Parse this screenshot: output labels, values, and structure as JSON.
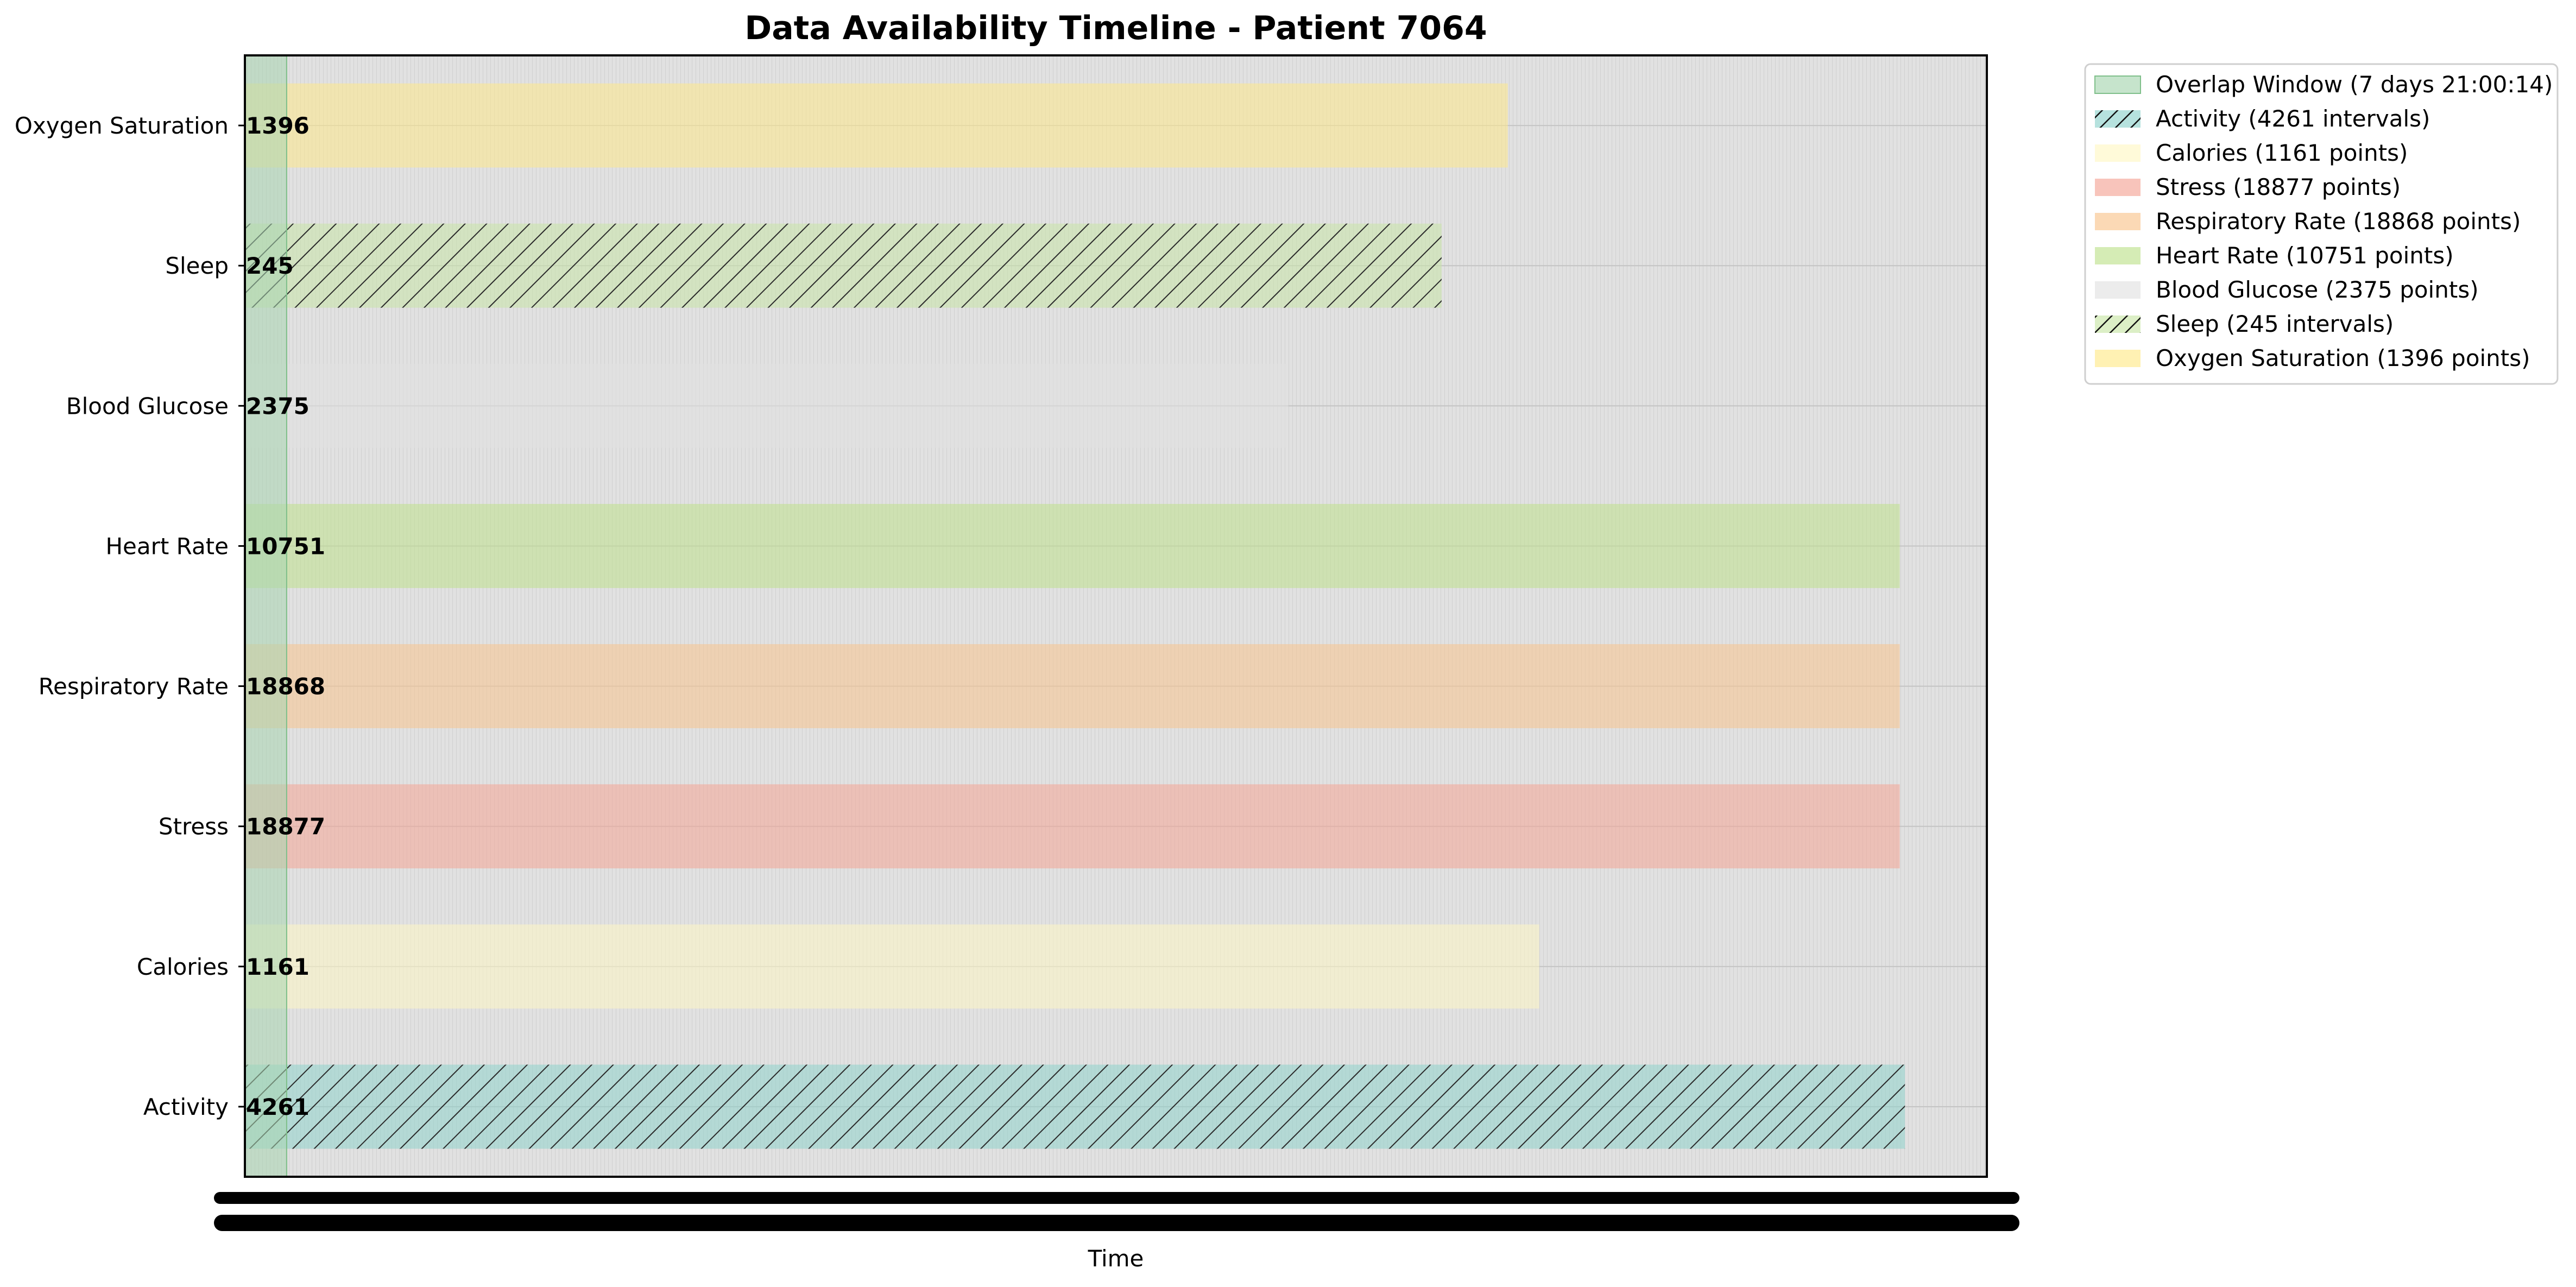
{
  "chart_data": {
    "type": "bar",
    "orientation": "horizontal",
    "title": "Data Availability Timeline - Patient 7064",
    "xlabel": "Time",
    "ylabel": "",
    "xlim": [
      0,
      1
    ],
    "grid": true,
    "legend_position": "outside-top-right",
    "overlap_window": {
      "label": "Overlap Window (7 days 21:00:14)",
      "start": 0.0,
      "end": 0.024,
      "color": "#a8d5b0"
    },
    "series": [
      {
        "name": "Activity",
        "legend": "Activity (4261 intervals)",
        "count_label": "4261",
        "start": 0.0,
        "end": 0.953,
        "color": "#8fd3cc",
        "hatch": true
      },
      {
        "name": "Calories",
        "legend": "Calories (1161 points)",
        "count_label": "1161",
        "start": 0.0,
        "end": 0.743,
        "color": "#fff8c4",
        "hatch": false
      },
      {
        "name": "Stress",
        "legend": "Stress (18877 points)",
        "count_label": "18877",
        "start": 0.0,
        "end": 0.95,
        "color": "#f5a596",
        "hatch": false
      },
      {
        "name": "Respiratory Rate",
        "legend": "Respiratory Rate (18868 points)",
        "count_label": "18868",
        "start": 0.0,
        "end": 0.95,
        "color": "#f9c58e",
        "hatch": false
      },
      {
        "name": "Heart Rate",
        "legend": "Heart Rate (10751 points)",
        "count_label": "10751",
        "start": 0.0,
        "end": 0.95,
        "color": "#bfe28d",
        "hatch": false
      },
      {
        "name": "Blood Glucose",
        "legend": "Blood Glucose (2375 points)",
        "count_label": "2375",
        "start": 0.0,
        "end": 0.599,
        "color": "#e2e2e2",
        "hatch": false
      },
      {
        "name": "Sleep",
        "legend": "Sleep (245 intervals)",
        "count_label": "245",
        "start": 0.0,
        "end": 0.687,
        "color": "#c9e6a8",
        "hatch": true
      },
      {
        "name": "Oxygen Saturation",
        "legend": "Oxygen Saturation (1396 points)",
        "count_label": "1396",
        "start": 0.0,
        "end": 0.725,
        "color": "#ffe98a",
        "hatch": false
      }
    ],
    "legend_order": [
      "Overlap Window",
      "Activity",
      "Calories",
      "Stress",
      "Respiratory Rate",
      "Heart Rate",
      "Blood Glucose",
      "Sleep",
      "Oxygen Saturation"
    ]
  },
  "colors": {
    "plot_background": "#e1e1e1",
    "axis_tick_blob": "#000000"
  }
}
